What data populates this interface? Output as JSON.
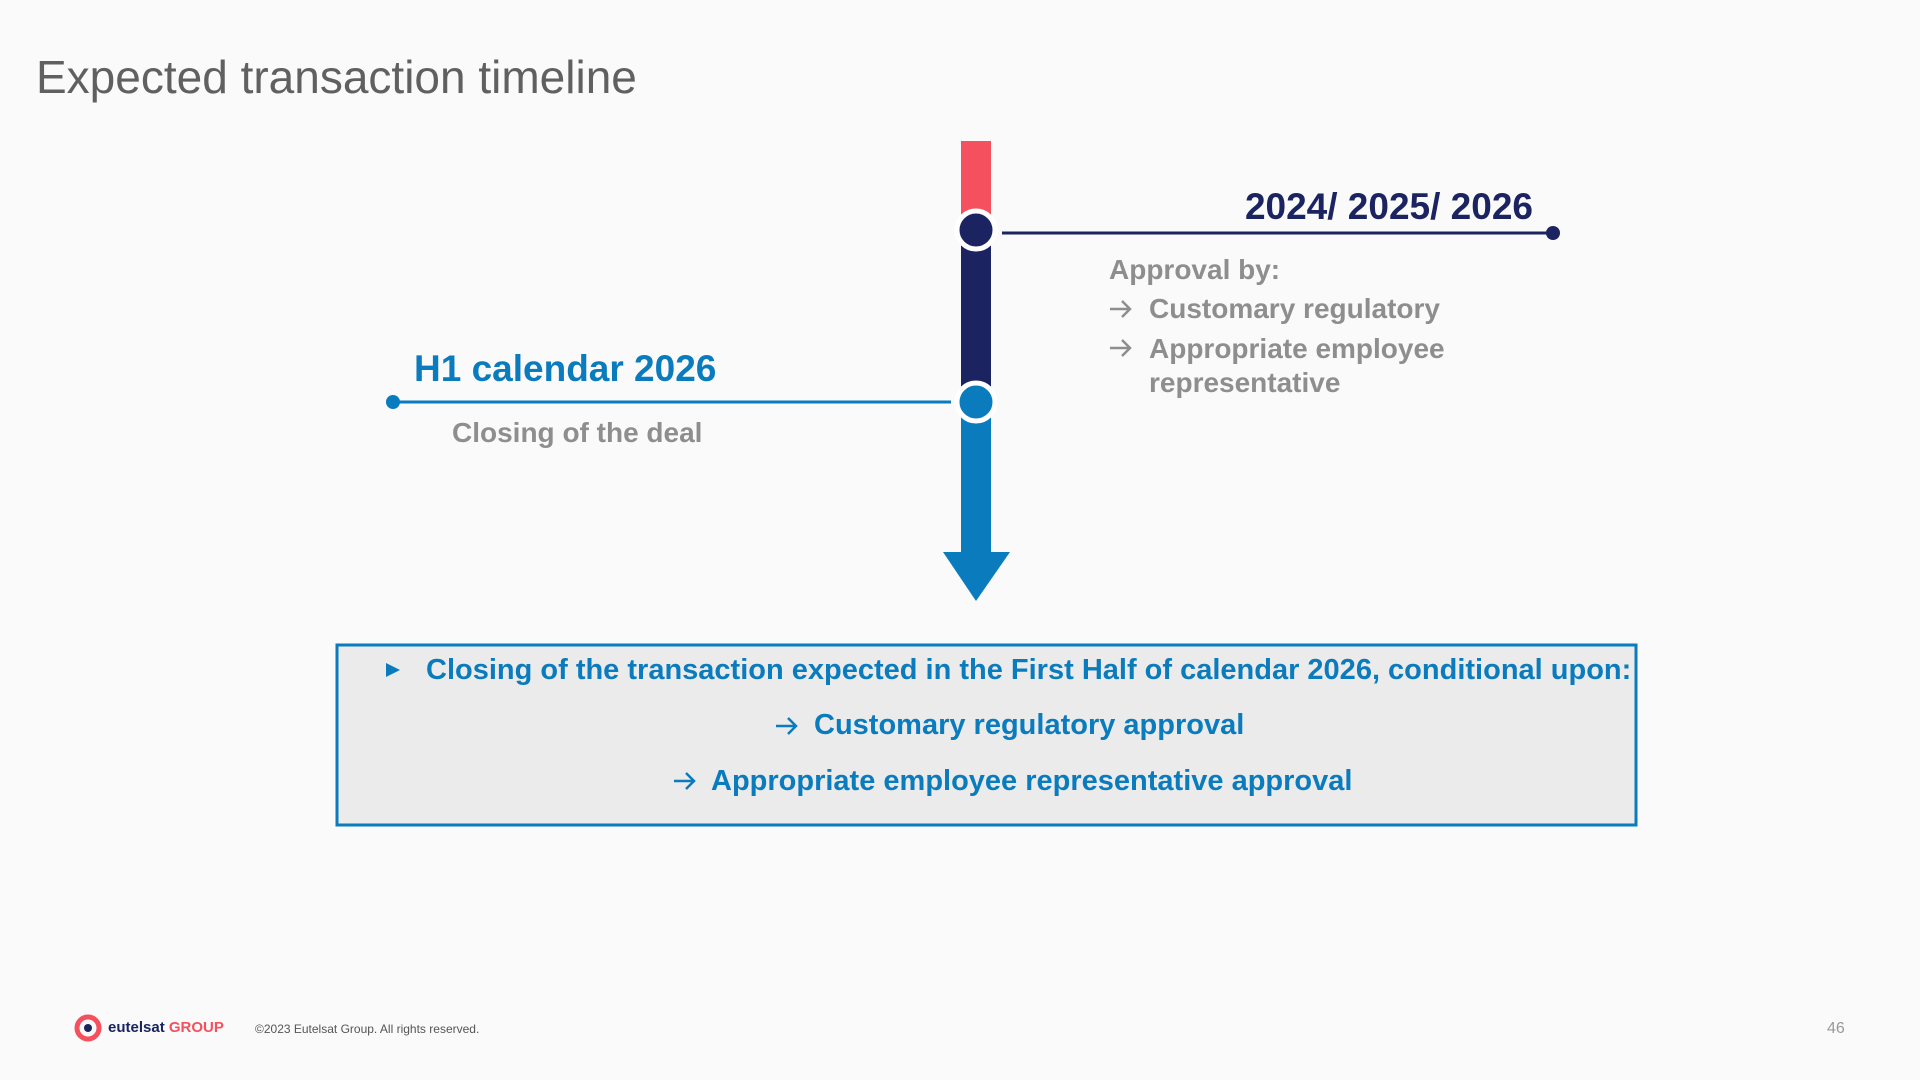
{
  "header": {
    "title": "Expected transaction timeline"
  },
  "timeline": {
    "upper": {
      "label": "2024/ 2025/ 2026",
      "heading": "Approval by:",
      "items": [
        "Customary regulatory",
        "Appropriate employee representative"
      ]
    },
    "lower": {
      "label": "H1 calendar 2026",
      "caption": "Closing of the deal"
    }
  },
  "summary": {
    "lead": "Closing of the transaction expected in the First Half of calendar 2026, conditional upon:",
    "conditions": [
      "Customary regulatory approval",
      "Appropriate employee representative approval"
    ]
  },
  "footer": {
    "brand": "eutelsat",
    "group": "GROUP",
    "copyright": "©2023 Eutelsat Group. All rights reserved.",
    "page": "46"
  }
}
